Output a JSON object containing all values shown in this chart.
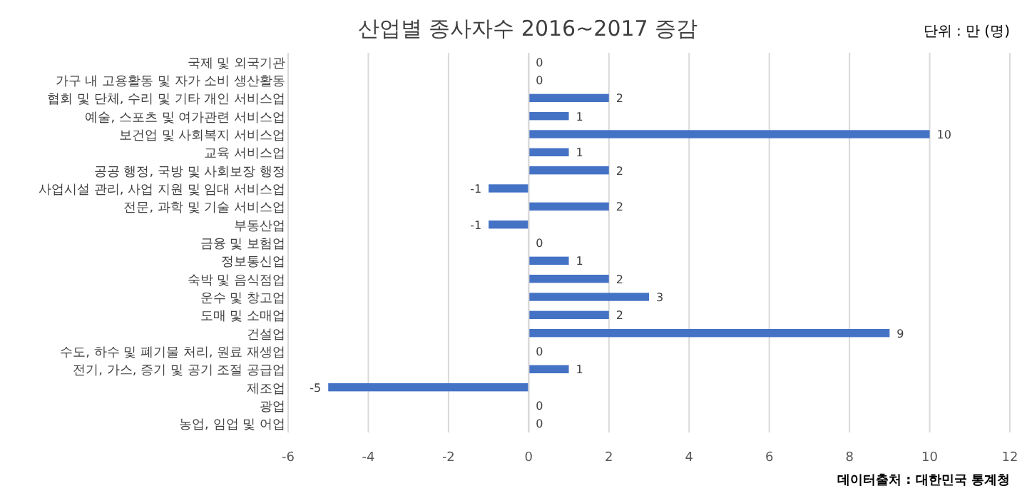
{
  "chart_data": {
    "type": "bar",
    "orientation": "horizontal",
    "title": "산업별 종사자수 2016~2017 증감",
    "annotations": [
      "단위 : 만 (명)",
      "데이터출처 : 대한민국 통계청"
    ],
    "categories": [
      "국제 및 외국기관",
      "가구 내 고용활동 및 자가 소비 생산활동",
      "협회 및 단체, 수리 및 기타 개인 서비스업",
      "예술, 스포츠 및 여가관련 서비스업",
      "보건업 및 사회복지 서비스업",
      "교육 서비스업",
      "공공 행정, 국방 및 사회보장 행정",
      "사업시설 관리, 사업 지원 및 임대 서비스업",
      "전문, 과학 및 기술 서비스업",
      "부동산업",
      "금융 및 보험업",
      "정보통신업",
      "숙박 및 음식점업",
      "운수 및 창고업",
      "도매 및 소매업",
      "건설업",
      "수도, 하수 및 폐기물 처리, 원료 재생업",
      "전기, 가스, 증기 및 공기 조절 공급업",
      "제조업",
      "광업",
      "농업, 임업 및 어업"
    ],
    "values": [
      0,
      0,
      2,
      1,
      10,
      1,
      2,
      -1,
      2,
      -1,
      0,
      1,
      2,
      3,
      2,
      9,
      0,
      1,
      -5,
      0,
      0
    ],
    "color": "#4472c4",
    "xlim": [
      -6,
      12
    ],
    "xticks": [
      -6,
      -4,
      -2,
      0,
      2,
      4,
      6,
      8,
      10,
      12
    ],
    "grid": "x",
    "data_labels": true
  }
}
